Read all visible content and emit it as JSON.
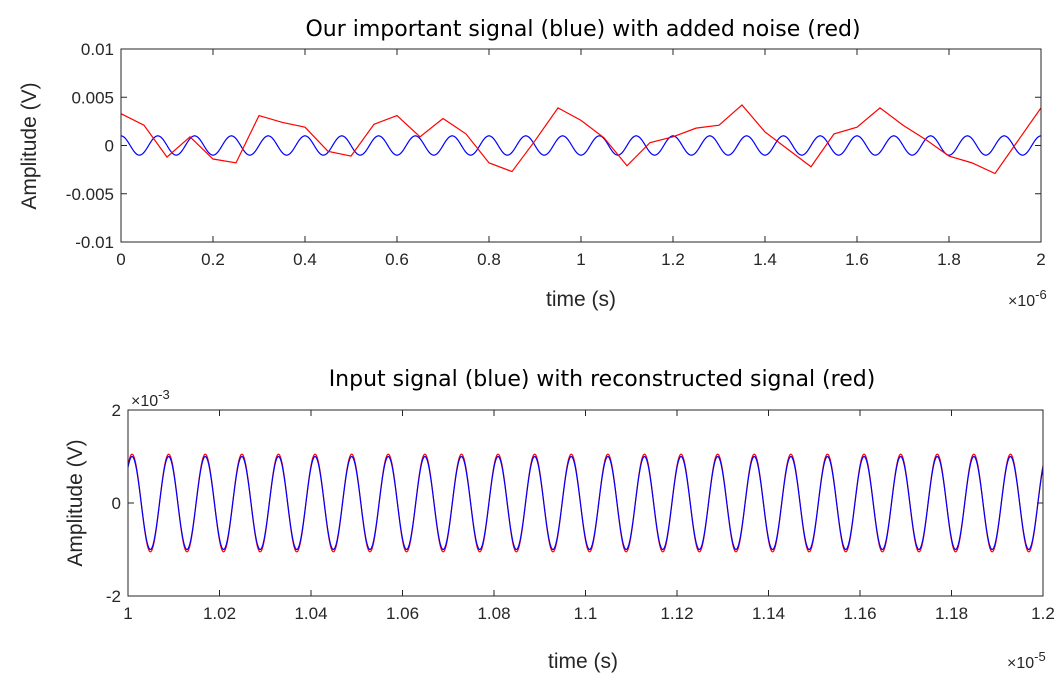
{
  "chart_data": [
    {
      "type": "line",
      "title": "Our important signal (blue) with added noise (red)",
      "xlabel": "time (s)",
      "ylabel": "Amplitude (V)",
      "x_exponent_label": "×10",
      "x_exponent": "-6",
      "xlim": [
        0,
        2e-06
      ],
      "ylim": [
        -0.01,
        0.01
      ],
      "xticks": [
        0,
        2e-07,
        4e-07,
        6e-07,
        8e-07,
        1e-06,
        1.2e-06,
        1.4e-06,
        1.6e-06,
        1.8e-06,
        2e-06
      ],
      "xtick_labels": [
        "0",
        "0.2",
        "0.4",
        "0.6",
        "0.8",
        "1",
        "1.2",
        "1.4",
        "1.6",
        "1.8",
        "2"
      ],
      "yticks": [
        -0.01,
        -0.005,
        0,
        0.005,
        0.01
      ],
      "ytick_labels": [
        "-0.01",
        "-0.005",
        "0",
        "0.005",
        "0.01"
      ],
      "grid": false,
      "series": [
        {
          "color": "#0000ff",
          "description": "sine",
          "amplitude": 0.001,
          "frequency_hz": 12500000,
          "phase_deg": 90
        },
        {
          "color": "#ff0000",
          "description": "noisy",
          "x": [
            0,
            5e-08,
            1e-07,
            1.5e-07,
            2e-07,
            2.5e-07,
            3e-07,
            3.5e-07,
            4e-07,
            4.5e-07,
            5e-07,
            5.5e-07,
            6e-07,
            6.5e-07,
            7e-07,
            7.5e-07,
            8e-07,
            8.5e-07,
            9e-07,
            9.5e-07,
            1e-06,
            1.05e-06,
            1.1e-06,
            1.15e-06,
            1.2e-06,
            1.25e-06,
            1.3e-06,
            1.35e-06,
            1.4e-06,
            1.45e-06,
            1.5e-06,
            1.55e-06,
            1.6e-06,
            1.65e-06,
            1.7e-06,
            1.75e-06,
            1.8e-06,
            1.85e-06,
            1.9e-06,
            1.95e-06,
            2e-06
          ],
          "y": [
            0.0033,
            0.0021,
            -0.0012,
            0.0009,
            -0.0014,
            -0.0018,
            0.0031,
            0.0024,
            0.0019,
            -0.0006,
            -0.0011,
            0.0022,
            0.0031,
            0.0009,
            0.0028,
            0.0012,
            -0.0018,
            -0.0027,
            0.0005,
            0.0039,
            0.0026,
            0.0008,
            -0.0021,
            0.0003,
            0.0009,
            0.0018,
            0.0021,
            0.0042,
            0.0014,
            -0.0004,
            -0.0022,
            0.0012,
            0.0019,
            0.0039,
            0.0021,
            0.0006,
            -0.0011,
            -0.0018,
            -0.0029,
            0.0005,
            0.0039
          ]
        }
      ]
    },
    {
      "type": "line",
      "title": "Input signal (blue) with reconstructed signal (red)",
      "xlabel": "time (s)",
      "ylabel": "Amplitude (V)",
      "x_exponent_label": "×10",
      "x_exponent": "-5",
      "y_exponent_label": "×10",
      "y_exponent": "-3",
      "xlim": [
        1e-05,
        1.2e-05
      ],
      "ylim": [
        -0.002,
        0.002
      ],
      "xticks": [
        1e-05,
        1.02e-05,
        1.04e-05,
        1.06e-05,
        1.08e-05,
        1.1e-05,
        1.12e-05,
        1.14e-05,
        1.16e-05,
        1.18e-05,
        1.2e-05
      ],
      "xtick_labels": [
        "1",
        "1.02",
        "1.04",
        "1.06",
        "1.08",
        "1.1",
        "1.12",
        "1.14",
        "1.16",
        "1.18",
        "1.2"
      ],
      "yticks": [
        -0.002,
        0,
        0.002
      ],
      "ytick_labels": [
        "-2",
        "0",
        "2"
      ],
      "grid": false,
      "series": [
        {
          "color": "#ff0000",
          "description": "reconstructed",
          "amplitude": 0.00105,
          "frequency_hz": 12500000,
          "phase_deg": 50
        },
        {
          "color": "#0000ff",
          "description": "input",
          "amplitude": 0.001,
          "frequency_hz": 12500000,
          "phase_deg": 50
        }
      ]
    }
  ]
}
